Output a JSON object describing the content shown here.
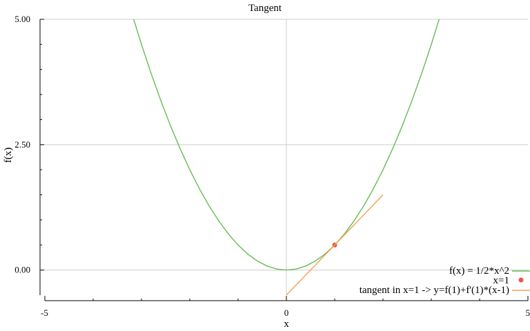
{
  "chart_data": {
    "type": "line",
    "title": "Tangent",
    "xlabel": "x",
    "ylabel": "f(x)",
    "xlim": [
      -5,
      5
    ],
    "ylim": [
      -0.5,
      5
    ],
    "x_ticks": [
      {
        "value": -5,
        "label": "-5"
      },
      {
        "value": 0,
        "label": "0"
      },
      {
        "value": 5,
        "label": "5"
      }
    ],
    "y_ticks": [
      {
        "value": 0,
        "label": "0.00"
      },
      {
        "value": 2.5,
        "label": "2.50"
      },
      {
        "value": 5,
        "label": "5.00"
      }
    ],
    "grid": true,
    "legend_position": "bottom-right",
    "series": [
      {
        "name": "f(x) = 1/2*x^2",
        "kind": "line",
        "color": "#66bb55",
        "x": [
          -3.2,
          -3.0,
          -2.8,
          -2.6,
          -2.4,
          -2.2,
          -2.0,
          -1.8,
          -1.6,
          -1.4,
          -1.2,
          -1.0,
          -0.8,
          -0.6,
          -0.4,
          -0.2,
          0.0,
          0.2,
          0.4,
          0.6,
          0.8,
          1.0,
          1.2,
          1.4,
          1.6,
          1.8,
          2.0,
          2.2,
          2.4,
          2.6,
          2.8,
          3.0,
          3.2
        ],
        "y": [
          5.12,
          4.5,
          3.92,
          3.38,
          2.88,
          2.42,
          2.0,
          1.62,
          1.28,
          0.98,
          0.72,
          0.5,
          0.32,
          0.18,
          0.08,
          0.02,
          0.0,
          0.02,
          0.08,
          0.18,
          0.32,
          0.5,
          0.72,
          0.98,
          1.28,
          1.62,
          2.0,
          2.42,
          2.88,
          3.38,
          3.92,
          4.5,
          5.12
        ]
      },
      {
        "name": "x=1",
        "kind": "point",
        "color": "#ee5544",
        "x": [
          1
        ],
        "y": [
          0.5
        ]
      },
      {
        "name": "tangent in x=1 -> y=f(1)+f'(1)*(x-1)",
        "kind": "line",
        "color": "#f5a050",
        "x": [
          0,
          2
        ],
        "y": [
          -0.5,
          1.5
        ]
      }
    ]
  }
}
